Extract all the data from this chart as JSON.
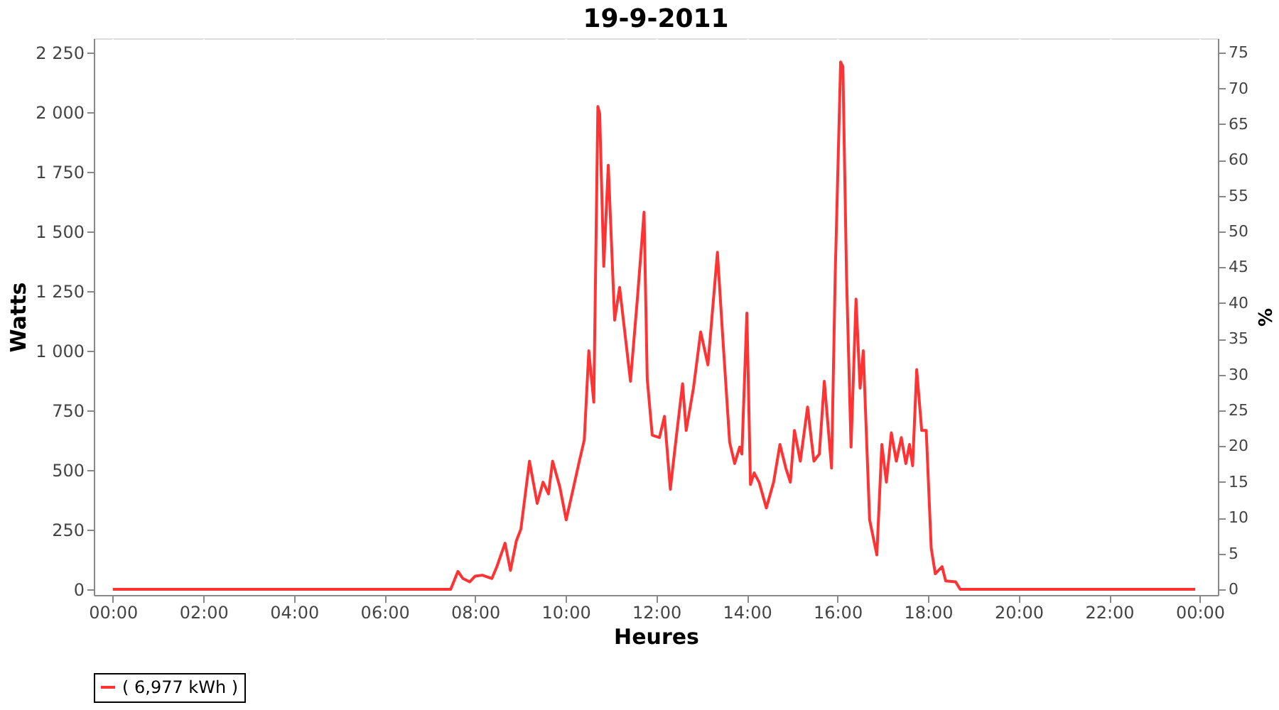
{
  "chart_data": {
    "type": "line",
    "title": "19-9-2011",
    "xlabel": "Heures",
    "ylabel": "Watts",
    "y2label": "%",
    "xlim": [
      -0.42,
      24.4
    ],
    "ylim": [
      -24,
      2310
    ],
    "y2lim": [
      -0.8,
      77
    ],
    "xticks": [
      {
        "value": 0,
        "label": "00:00"
      },
      {
        "value": 2,
        "label": "02:00"
      },
      {
        "value": 4,
        "label": "04:00"
      },
      {
        "value": 6,
        "label": "06:00"
      },
      {
        "value": 8,
        "label": "08:00"
      },
      {
        "value": 10,
        "label": "10:00"
      },
      {
        "value": 12,
        "label": "12:00"
      },
      {
        "value": 14,
        "label": "14:00"
      },
      {
        "value": 16,
        "label": "16:00"
      },
      {
        "value": 18,
        "label": "18:00"
      },
      {
        "value": 20,
        "label": "20:00"
      },
      {
        "value": 22,
        "label": "22:00"
      },
      {
        "value": 24,
        "label": "00:00"
      }
    ],
    "yticks": [
      0,
      250,
      500,
      750,
      {
        "value": 1000,
        "label": "1 000"
      },
      {
        "value": 1250,
        "label": "1 250"
      },
      {
        "value": 1500,
        "label": "1 500"
      },
      {
        "value": 1750,
        "label": "1 750"
      },
      {
        "value": 2000,
        "label": "2 000"
      },
      {
        "value": 2250,
        "label": "2 250"
      }
    ],
    "y2ticks": [
      0,
      5,
      10,
      15,
      20,
      25,
      30,
      35,
      40,
      45,
      50,
      55,
      60,
      65,
      70,
      75
    ],
    "grid": true,
    "legend": "bottom",
    "marker": "none",
    "line_style": "solid",
    "series": [
      {
        "name": "( 6,977 kWh )",
        "color": "#ff3333",
        "x": [
          0,
          7.46,
          7.62,
          7.73,
          7.88,
          8.0,
          8.16,
          8.37,
          8.48,
          8.66,
          8.78,
          8.91,
          9.01,
          9.2,
          9.37,
          9.5,
          9.62,
          9.71,
          9.87,
          10.01,
          10.14,
          10.3,
          10.41,
          10.51,
          10.62,
          10.71,
          10.75,
          10.84,
          10.94,
          11.08,
          11.19,
          11.43,
          11.59,
          11.73,
          11.8,
          11.91,
          12.07,
          12.18,
          12.31,
          12.41,
          12.58,
          12.66,
          12.82,
          12.98,
          13.14,
          13.35,
          13.46,
          13.62,
          13.73,
          13.84,
          13.89,
          14.0,
          14.08,
          14.16,
          14.27,
          14.43,
          14.59,
          14.73,
          14.86,
          14.96,
          15.05,
          15.18,
          15.34,
          15.48,
          15.6,
          15.71,
          15.87,
          15.95,
          16.07,
          16.12,
          16.2,
          16.3,
          16.41,
          16.5,
          16.57,
          16.71,
          16.87,
          16.98,
          17.08,
          17.19,
          17.3,
          17.41,
          17.51,
          17.59,
          17.66,
          17.75,
          17.86,
          17.96,
          18.07,
          18.16,
          18.31,
          18.39,
          18.61,
          18.71,
          23.9
        ],
        "values": [
          0,
          0,
          75,
          45,
          31,
          55,
          59,
          45,
          95,
          193,
          79,
          203,
          252,
          537,
          360,
          449,
          400,
          537,
          429,
          291,
          400,
          537,
          626,
          1000,
          784,
          2024,
          1994,
          1354,
          1778,
          1128,
          1266,
          872,
          1236,
          1581,
          882,
          646,
          636,
          725,
          419,
          587,
          862,
          666,
          843,
          1079,
          941,
          1413,
          1079,
          616,
          527,
          596,
          567,
          1158,
          439,
          488,
          449,
          341,
          449,
          607,
          508,
          449,
          666,
          537,
          764,
          537,
          567,
          872,
          508,
          1315,
          2211,
          2191,
          1315,
          596,
          1217,
          843,
          1000,
          291,
          144,
          607,
          449,
          656,
          537,
          636,
          527,
          607,
          518,
          921,
          666,
          666,
          173,
          65,
          95,
          35,
          31,
          0,
          0
        ]
      }
    ]
  }
}
